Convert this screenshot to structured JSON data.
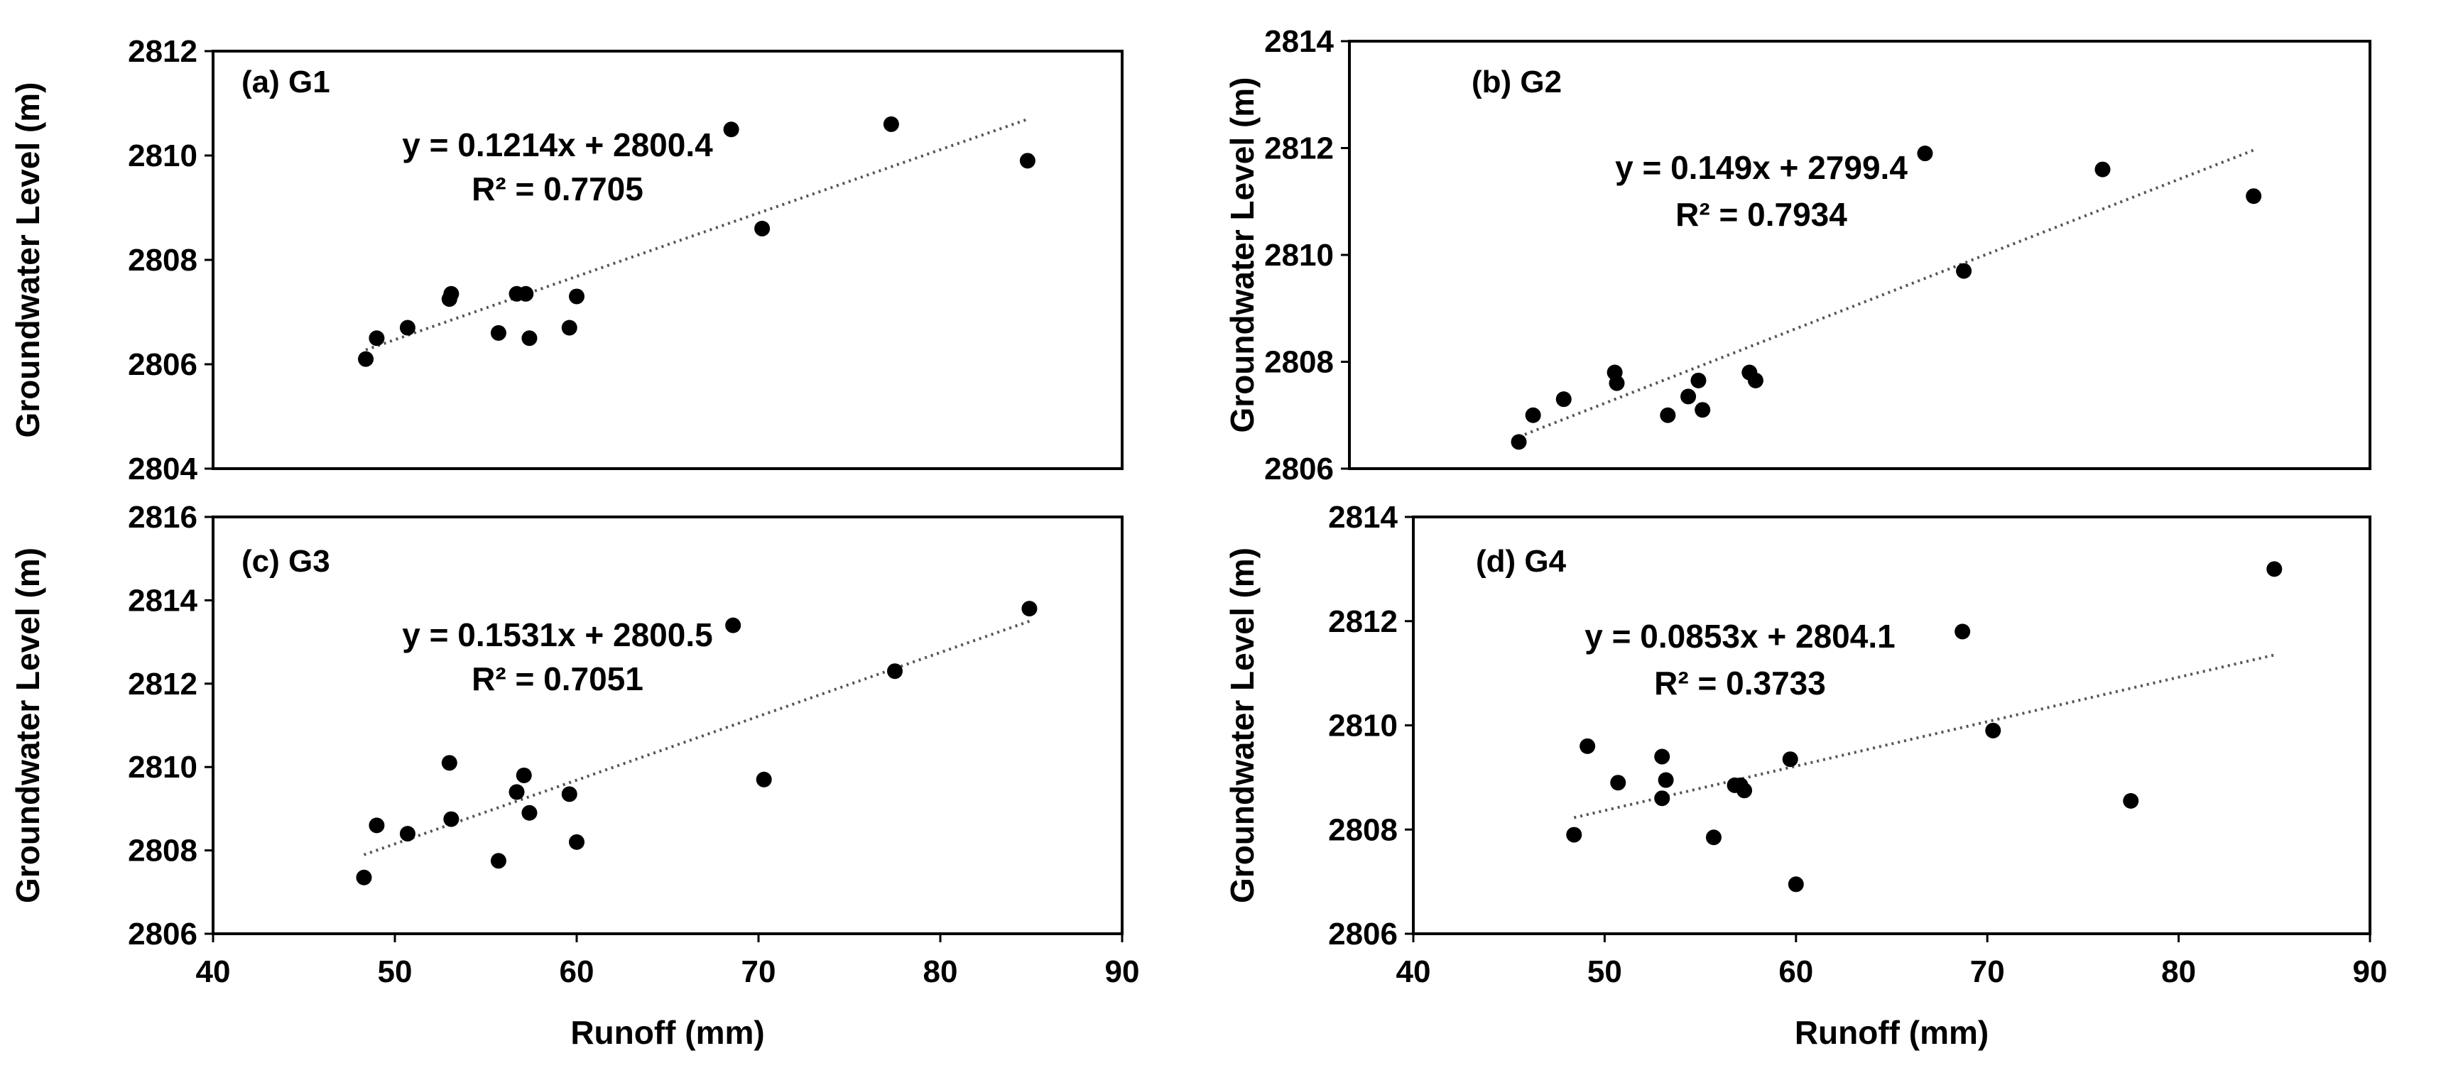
{
  "chart_data": [
    {
      "type": "scatter",
      "panel_label": "(a) G1",
      "xlabel": "Runoff (mm)",
      "ylabel": "Groundwater Level (m)",
      "xlim": [
        40,
        90
      ],
      "ylim": [
        2804,
        2812
      ],
      "x_ticks": [],
      "y_ticks": [
        "2804",
        "2806",
        "2808",
        "2810",
        "2812"
      ],
      "equation": "y = 0.1214x + 2800.4",
      "r_squared": "R² = 0.7705",
      "trendline": {
        "slope": 0.1214,
        "intercept": 2800.4,
        "x_range": [
          48.4,
          84.8
        ]
      },
      "points": [
        {
          "x": 48.4,
          "y": 2806.1
        },
        {
          "x": 49.0,
          "y": 2806.5
        },
        {
          "x": 50.7,
          "y": 2806.7
        },
        {
          "x": 53.0,
          "y": 2807.25
        },
        {
          "x": 53.1,
          "y": 2807.35
        },
        {
          "x": 55.7,
          "y": 2806.6
        },
        {
          "x": 56.7,
          "y": 2807.35
        },
        {
          "x": 57.2,
          "y": 2807.35
        },
        {
          "x": 57.4,
          "y": 2806.5
        },
        {
          "x": 59.6,
          "y": 2806.7
        },
        {
          "x": 60.0,
          "y": 2807.3
        },
        {
          "x": 68.5,
          "y": 2810.5
        },
        {
          "x": 70.2,
          "y": 2808.6
        },
        {
          "x": 77.3,
          "y": 2810.6
        },
        {
          "x": 84.8,
          "y": 2809.9
        }
      ]
    },
    {
      "type": "scatter",
      "panel_label": "(b) G2",
      "xlabel": "",
      "ylabel": "Groundwater Level (m)",
      "xlim": [
        40,
        90
      ],
      "ylim": [
        2806,
        2814
      ],
      "x_ticks": [],
      "y_ticks": [
        "2806",
        "2808",
        "2810",
        "2812",
        "2814"
      ],
      "equation": "y = 0.149x + 2799.4",
      "r_squared": "R² = 0.7934",
      "trendline": {
        "slope": 0.149,
        "intercept": 2799.4,
        "x_range": [
          48.3,
          84.3
        ]
      },
      "points": [
        {
          "x": 48.3,
          "y": 2806.5
        },
        {
          "x": 49.0,
          "y": 2807.0
        },
        {
          "x": 50.5,
          "y": 2807.3
        },
        {
          "x": 53.0,
          "y": 2807.8
        },
        {
          "x": 53.1,
          "y": 2807.6
        },
        {
          "x": 55.6,
          "y": 2807.0
        },
        {
          "x": 56.6,
          "y": 2807.35
        },
        {
          "x": 57.1,
          "y": 2807.65
        },
        {
          "x": 57.3,
          "y": 2807.1
        },
        {
          "x": 59.6,
          "y": 2807.8
        },
        {
          "x": 59.9,
          "y": 2807.65
        },
        {
          "x": 68.2,
          "y": 2811.9
        },
        {
          "x": 70.1,
          "y": 2809.7
        },
        {
          "x": 76.9,
          "y": 2811.6
        },
        {
          "x": 84.3,
          "y": 2811.1
        }
      ]
    },
    {
      "type": "scatter",
      "panel_label": "(c) G3",
      "xlabel": "Runoff (mm)",
      "ylabel": "Groundwater Level (m)",
      "xlim": [
        40,
        90
      ],
      "ylim": [
        2806,
        2816
      ],
      "x_ticks": [
        "40",
        "50",
        "60",
        "70",
        "80",
        "90"
      ],
      "y_ticks": [
        "2806",
        "2808",
        "2810",
        "2812",
        "2814",
        "2816"
      ],
      "equation": "y = 0.1531x + 2800.5",
      "r_squared": "R² = 0.7051",
      "trendline": {
        "slope": 0.1531,
        "intercept": 2800.5,
        "x_range": [
          48.3,
          84.9
        ]
      },
      "points": [
        {
          "x": 48.3,
          "y": 2807.35
        },
        {
          "x": 49.0,
          "y": 2808.6
        },
        {
          "x": 50.7,
          "y": 2808.4
        },
        {
          "x": 53.0,
          "y": 2810.1
        },
        {
          "x": 53.1,
          "y": 2808.75
        },
        {
          "x": 55.7,
          "y": 2807.75
        },
        {
          "x": 56.7,
          "y": 2809.4
        },
        {
          "x": 57.1,
          "y": 2809.8
        },
        {
          "x": 57.4,
          "y": 2808.9
        },
        {
          "x": 59.6,
          "y": 2809.35
        },
        {
          "x": 60.0,
          "y": 2808.2
        },
        {
          "x": 68.6,
          "y": 2813.4
        },
        {
          "x": 70.3,
          "y": 2809.7
        },
        {
          "x": 77.5,
          "y": 2812.3
        },
        {
          "x": 84.9,
          "y": 2813.8
        }
      ]
    },
    {
      "type": "scatter",
      "panel_label": "(d) G4",
      "xlabel": "Runoff (mm)",
      "ylabel": "Groundwater Level (m)",
      "xlim": [
        40,
        90
      ],
      "ylim": [
        2806,
        2814
      ],
      "x_ticks": [
        "40",
        "50",
        "60",
        "70",
        "80",
        "90"
      ],
      "y_ticks": [
        "2806",
        "2808",
        "2810",
        "2812",
        "2814"
      ],
      "equation": "y = 0.0853x + 2804.1",
      "r_squared": "R² = 0.3733",
      "trendline": {
        "slope": 0.0853,
        "intercept": 2804.1,
        "x_range": [
          48.4,
          85.0
        ]
      },
      "points": [
        {
          "x": 48.4,
          "y": 2807.9
        },
        {
          "x": 49.1,
          "y": 2809.6
        },
        {
          "x": 50.7,
          "y": 2808.9
        },
        {
          "x": 53.0,
          "y": 2809.4
        },
        {
          "x": 53.0,
          "y": 2808.6
        },
        {
          "x": 53.2,
          "y": 2808.95
        },
        {
          "x": 55.7,
          "y": 2807.85
        },
        {
          "x": 56.8,
          "y": 2808.85
        },
        {
          "x": 57.1,
          "y": 2808.85
        },
        {
          "x": 57.3,
          "y": 2808.75
        },
        {
          "x": 59.7,
          "y": 2809.35
        },
        {
          "x": 60.0,
          "y": 2806.95
        },
        {
          "x": 68.7,
          "y": 2811.8
        },
        {
          "x": 70.3,
          "y": 2809.9
        },
        {
          "x": 77.5,
          "y": 2808.55
        },
        {
          "x": 85.0,
          "y": 2813.0
        }
      ]
    }
  ]
}
